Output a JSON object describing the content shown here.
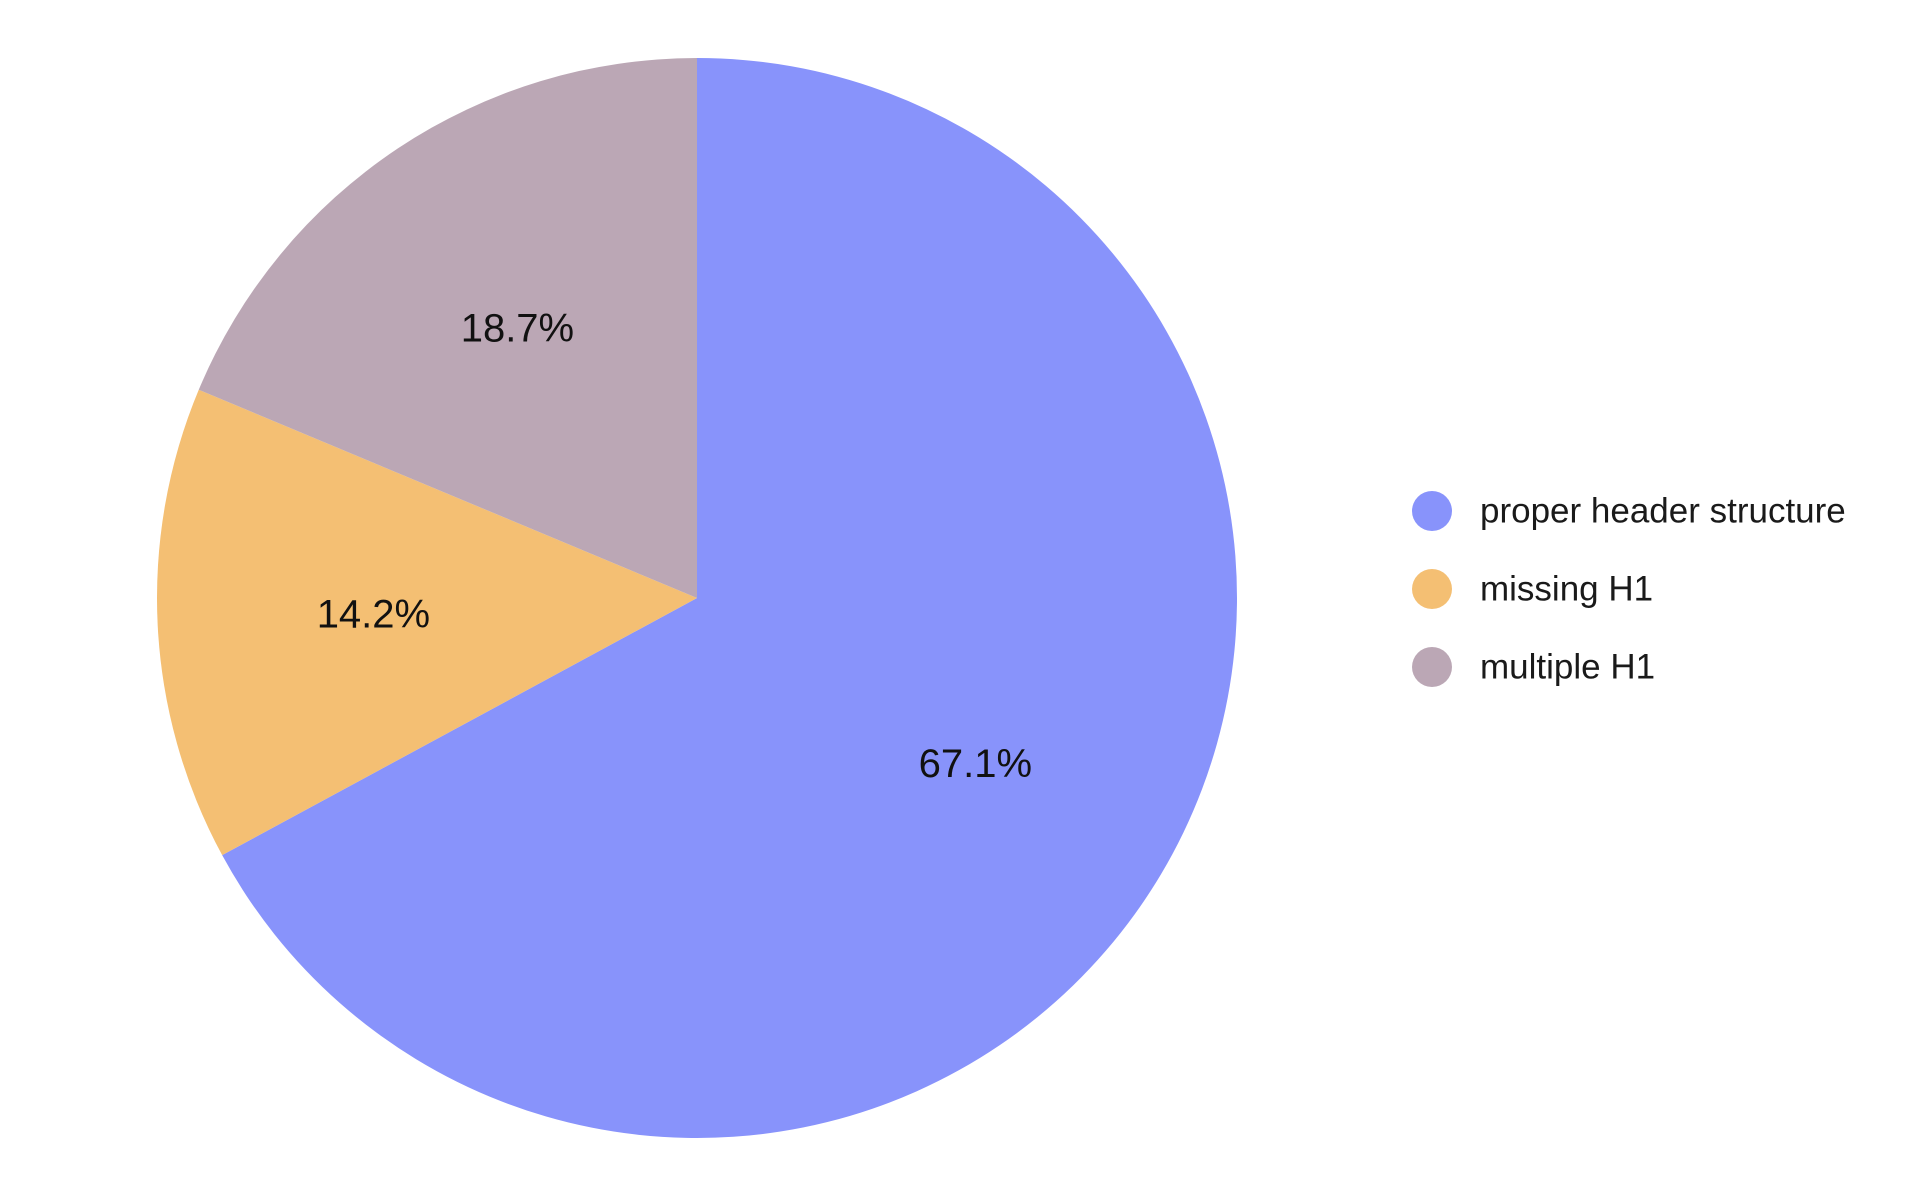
{
  "chart_data": {
    "type": "pie",
    "title": "",
    "start_angle": "12 o'clock",
    "direction": "clockwise",
    "legend_position": "right",
    "slices": [
      {
        "label": "proper header structure",
        "value": 67.1,
        "display": "67.1%",
        "color": "#8893fb"
      },
      {
        "label": "missing H1",
        "value": 14.2,
        "display": "14.2%",
        "color": "#f4bf73"
      },
      {
        "label": "multiple H1",
        "value": 18.7,
        "display": "18.7%",
        "color": "#bba7b5"
      }
    ]
  }
}
